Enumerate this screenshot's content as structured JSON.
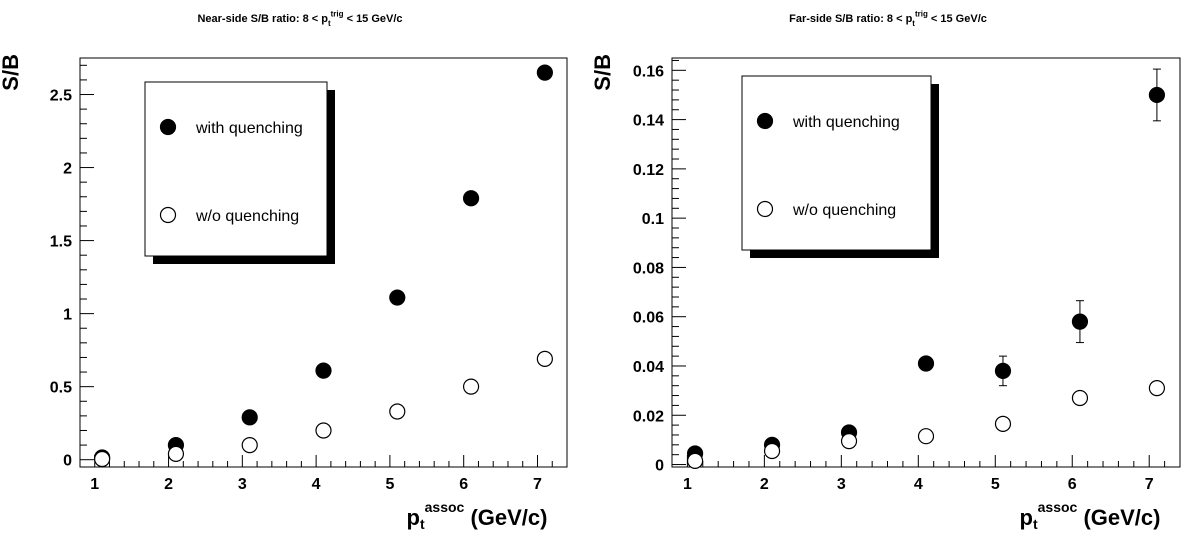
{
  "chart_data": [
    {
      "type": "scatter",
      "title": {
        "main": "Near-side S/B ratio: 8 < p",
        "sub": "t",
        "sup": "trig",
        "tail": " < 15 GeV/c"
      },
      "xlabel": {
        "main": "p",
        "sub": "t",
        "sup": "assoc",
        "tail": " (GeV/c)"
      },
      "ylabel": "S/B",
      "xlim": [
        0.8,
        7.4
      ],
      "ylim": [
        -0.05,
        2.75
      ],
      "xticks": [
        1,
        2,
        3,
        4,
        5,
        6,
        7
      ],
      "xticklabels": [
        "1",
        "2",
        "3",
        "4",
        "5",
        "6",
        "7"
      ],
      "yticks": [
        0,
        0.5,
        1,
        1.5,
        2,
        2.5
      ],
      "yticklabels": [
        "0",
        "0.5",
        "1",
        "1.5",
        "2",
        "2.5"
      ],
      "legend": {
        "placement": "upper-left",
        "entries": [
          "with quenching",
          "w/o quenching"
        ]
      },
      "series": [
        {
          "name": "with quenching",
          "marker": "filled-circle",
          "x": [
            1.1,
            2.1,
            3.1,
            4.1,
            5.1,
            6.1,
            7.1
          ],
          "y": [
            0.015,
            0.1,
            0.29,
            0.61,
            1.11,
            1.79,
            2.65
          ],
          "err": [
            0,
            0,
            0,
            0,
            0,
            0,
            0
          ]
        },
        {
          "name": "w/o quenching",
          "marker": "open-circle",
          "x": [
            1.1,
            2.1,
            3.1,
            4.1,
            5.1,
            6.1,
            7.1
          ],
          "y": [
            0.005,
            0.04,
            0.1,
            0.2,
            0.33,
            0.5,
            0.69
          ],
          "err": [
            0,
            0,
            0,
            0,
            0,
            0,
            0
          ]
        }
      ]
    },
    {
      "type": "scatter",
      "title": {
        "main": "Far-side S/B ratio: 8 < p",
        "sub": "t",
        "sup": "trig",
        "tail": " < 15 GeV/c"
      },
      "xlabel": {
        "main": "p",
        "sub": "t",
        "sup": "assoc",
        "tail": " (GeV/c)"
      },
      "ylabel": "S/B",
      "xlim": [
        0.8,
        7.4
      ],
      "ylim": [
        -0.001,
        0.165
      ],
      "xticks": [
        1,
        2,
        3,
        4,
        5,
        6,
        7
      ],
      "xticklabels": [
        "1",
        "2",
        "3",
        "4",
        "5",
        "6",
        "7"
      ],
      "yticks": [
        0,
        0.02,
        0.04,
        0.06,
        0.08,
        0.1,
        0.12,
        0.14,
        0.16
      ],
      "yticklabels": [
        "0",
        "0.02",
        "0.04",
        "0.06",
        "0.08",
        "0.1",
        "0.12",
        "0.14",
        "0.16"
      ],
      "legend": {
        "placement": "upper-left",
        "entries": [
          "with quenching",
          "w/o quenching"
        ]
      },
      "series": [
        {
          "name": "with quenching",
          "marker": "filled-circle",
          "x": [
            1.1,
            2.1,
            3.1,
            4.1,
            5.1,
            6.1,
            7.1
          ],
          "y": [
            0.0045,
            0.008,
            0.013,
            0.041,
            0.038,
            0.058,
            0.15
          ],
          "err": [
            0.001,
            0.001,
            0.001,
            0.002,
            0.006,
            0.0085,
            0.0105
          ]
        },
        {
          "name": "w/o quenching",
          "marker": "open-circle",
          "x": [
            1.1,
            2.1,
            3.1,
            4.1,
            5.1,
            6.1,
            7.1
          ],
          "y": [
            0.0015,
            0.0055,
            0.0095,
            0.0115,
            0.0165,
            0.027,
            0.031
          ],
          "err": [
            0.0005,
            0.0005,
            0.0005,
            0.0005,
            0.0005,
            0.002,
            0.001
          ]
        }
      ]
    }
  ]
}
